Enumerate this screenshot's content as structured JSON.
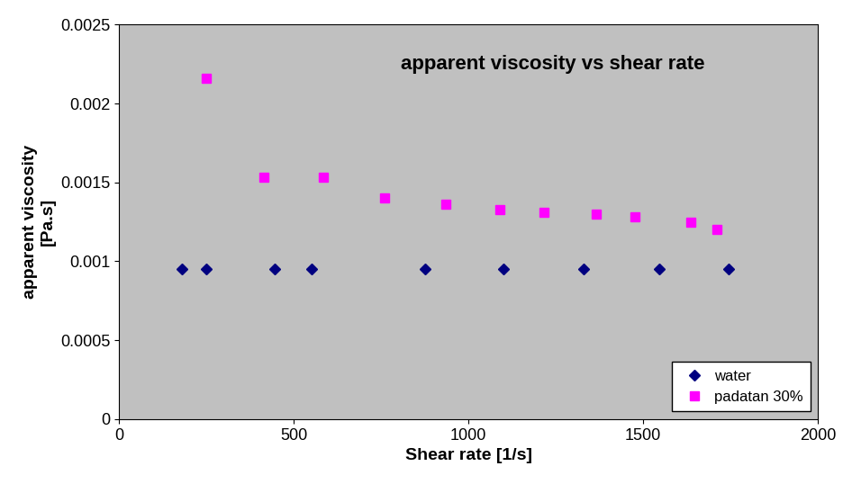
{
  "chart_data": {
    "type": "scatter",
    "title": "apparent viscosity vs shear rate",
    "x_label": "Shear rate [1/s]",
    "y_label": "apparent viscosity\n[Pa.s]",
    "xlim": [
      0,
      2000
    ],
    "xticks": [
      0,
      500,
      1000,
      1500,
      2000
    ],
    "ylim": [
      0,
      0.0025
    ],
    "yticks": [
      0,
      0.0005,
      0.001,
      0.0015,
      0.002,
      0.0025
    ],
    "grid": false,
    "legend": "lower right",
    "series": [
      {
        "name": "water",
        "color": "#000080",
        "marker": "diamond",
        "x": [
          180,
          250,
          445,
          550,
          875,
          1100,
          1330,
          1545,
          1745
        ],
        "values": [
          0.00095,
          0.00095,
          0.00095,
          0.00095,
          0.00095,
          0.00095,
          0.00095,
          0.00095,
          0.00095
        ]
      },
      {
        "name": "padatan 30%",
        "color": "#ff00ff",
        "marker": "square",
        "x": [
          250,
          415,
          585,
          760,
          935,
          1090,
          1215,
          1365,
          1475,
          1635,
          1710
        ],
        "values": [
          0.00216,
          0.00153,
          0.00153,
          0.0014,
          0.00136,
          0.00133,
          0.00131,
          0.0013,
          0.00128,
          0.00125,
          0.0012
        ]
      }
    ]
  }
}
